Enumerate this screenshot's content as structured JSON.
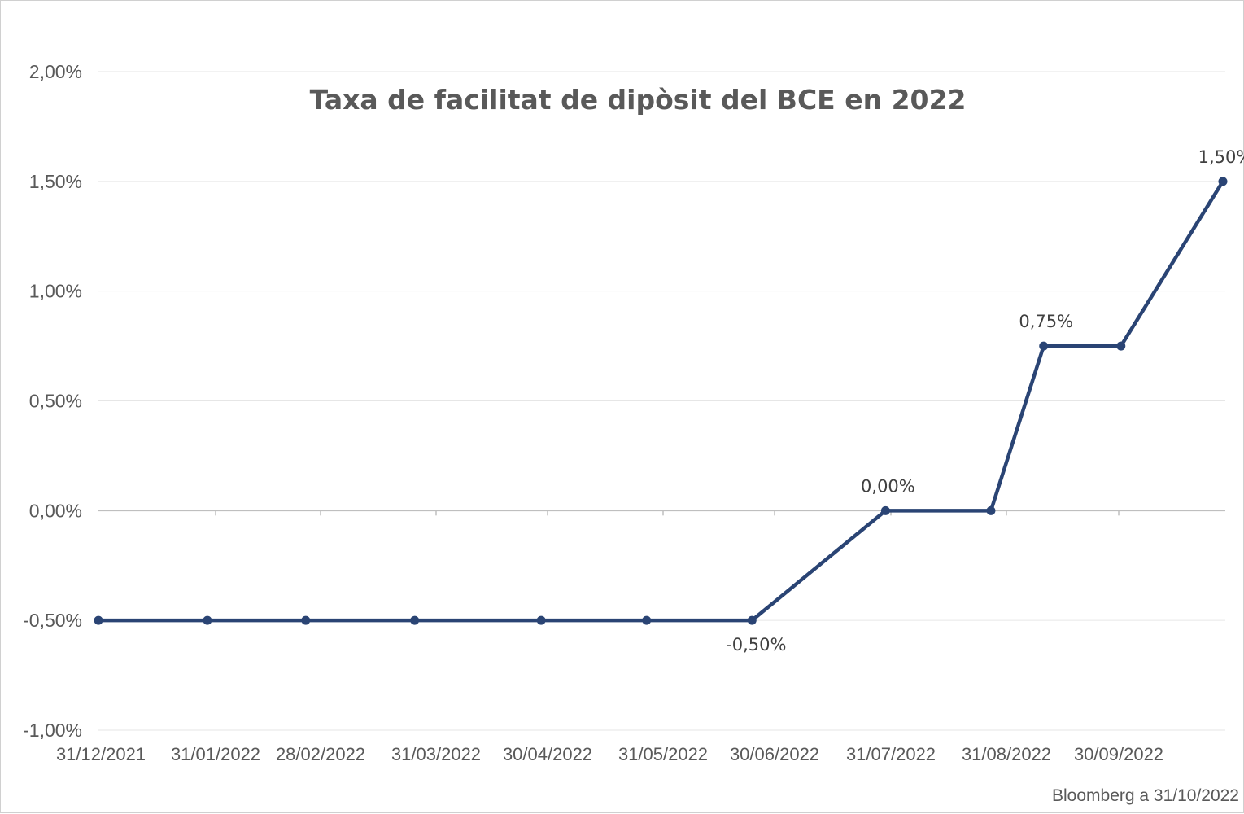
{
  "chart_data": {
    "type": "line",
    "title": "Taxa de facilitat de dipòsit del BCE en 2022",
    "xlabel": "",
    "ylabel": "",
    "ylim": [
      -1.0,
      2.0
    ],
    "y_ticks": [
      "2,00%",
      "1,50%",
      "1,00%",
      "0,50%",
      "0,00%",
      "-0,50%",
      "-1,00%"
    ],
    "y_tick_values": [
      2.0,
      1.5,
      1.0,
      0.5,
      0.0,
      -0.5,
      -1.0
    ],
    "x_ticks": [
      "31/12/2021",
      "31/01/2022",
      "28/02/2022",
      "31/03/2022",
      "30/04/2022",
      "31/05/2022",
      "30/06/2022",
      "31/07/2022",
      "31/08/2022",
      "30/09/2022"
    ],
    "x_range": [
      "2021-12-31",
      "2022-10-31"
    ],
    "series": [
      {
        "color": "#2a4474",
        "points": [
          {
            "x": "2021-12-31",
            "y": -0.5
          },
          {
            "x": "2022-01-31",
            "y": -0.5
          },
          {
            "x": "2022-02-28",
            "y": -0.5
          },
          {
            "x": "2022-03-31",
            "y": -0.5
          },
          {
            "x": "2022-05-06",
            "y": -0.5
          },
          {
            "x": "2022-06-05",
            "y": -0.5
          },
          {
            "x": "2022-07-05",
            "y": -0.5
          },
          {
            "x": "2022-08-12",
            "y": 0.0
          },
          {
            "x": "2022-09-11",
            "y": 0.0
          },
          {
            "x": "2022-09-26",
            "y": 0.75
          },
          {
            "x": "2022-10-18",
            "y": 0.75
          },
          {
            "x": "2022-11-16",
            "y": 1.5
          }
        ]
      }
    ],
    "data_labels": [
      {
        "text": "-0,50%",
        "point_index": 6,
        "position": "below"
      },
      {
        "text": "0,00%",
        "point_index": 7,
        "position": "above"
      },
      {
        "text": "0,75%",
        "point_index": 9,
        "position": "above"
      },
      {
        "text": "1,50%",
        "point_index": 11,
        "position": "above"
      }
    ],
    "grid": true,
    "legend": "none",
    "source": "Bloomberg a 31/10/2022"
  }
}
